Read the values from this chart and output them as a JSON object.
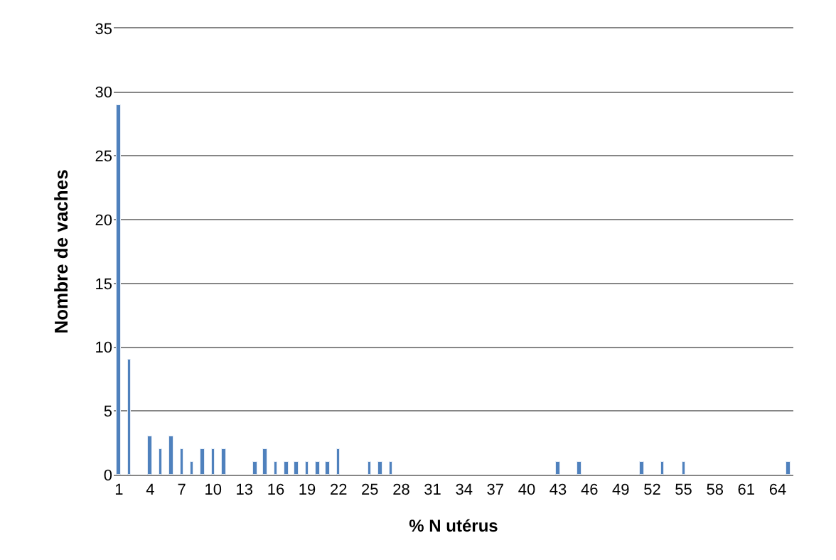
{
  "chart_data": {
    "type": "bar",
    "xlabel": "% N utérus",
    "ylabel": "Nombre de vaches",
    "categories": [
      "1",
      null,
      null,
      "4",
      null,
      null,
      "7",
      null,
      null,
      "10",
      null,
      null,
      "13",
      null,
      null,
      "16",
      null,
      null,
      "19",
      null,
      null,
      "22",
      null,
      null,
      "25",
      null,
      null,
      "28",
      null,
      null,
      "31",
      null,
      null,
      "34",
      null,
      null,
      "37",
      null,
      null,
      "40",
      null,
      null,
      "43",
      null,
      null,
      "46",
      null,
      null,
      "49",
      null,
      null,
      "52",
      null,
      null,
      "55",
      null,
      null,
      "58",
      null,
      null,
      "61",
      null,
      null,
      "64",
      null
    ],
    "values": [
      29,
      9,
      null,
      3,
      2,
      3,
      2,
      1,
      2,
      2,
      2,
      null,
      null,
      1,
      2,
      1,
      1,
      1,
      1,
      1,
      1,
      2,
      null,
      null,
      1,
      1,
      1,
      null,
      null,
      null,
      null,
      null,
      null,
      null,
      null,
      null,
      null,
      null,
      null,
      null,
      null,
      null,
      1,
      null,
      1,
      null,
      null,
      null,
      null,
      null,
      1,
      null,
      1,
      null,
      1,
      null,
      null,
      null,
      null,
      null,
      null,
      null,
      null,
      null,
      1
    ],
    "color": "#4f81bd",
    "ylim": [
      0,
      35
    ],
    "yticks": [
      0,
      5,
      10,
      15,
      20,
      25,
      30,
      35
    ],
    "grid": "y",
    "legend": false
  }
}
